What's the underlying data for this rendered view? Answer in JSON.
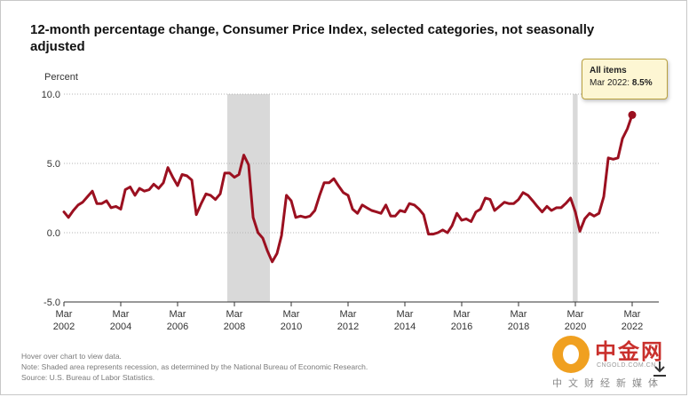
{
  "page": {
    "title": "12-month percentage change, Consumer Price Index, selected categories, not seasonally adjusted",
    "notes": [
      "Hover over chart to view data.",
      "Note: Shaded area represents recession, as determined by the National Bureau of Economic Research.",
      "Source: U.S. Bureau of Labor Statistics."
    ]
  },
  "tooltip": {
    "series": "All items",
    "date_label": "Mar 2022:",
    "value_label": "8.5%"
  },
  "watermark": {
    "name": "中金网",
    "domain": "CNGOLD.COM.CN",
    "slogan": "中文财经新媒体"
  },
  "chart_data": {
    "type": "line",
    "title": "12-month percentage change, Consumer Price Index, selected categories, not seasonally adjusted",
    "ylabel": "Percent",
    "xlabel": "",
    "ylim": [
      -5.0,
      10.0
    ],
    "yticks": [
      "10.0",
      "5.0",
      "0.0",
      "-5.0"
    ],
    "ytick_values": [
      10,
      5,
      0,
      -5
    ],
    "xtick_years": [
      2002,
      2004,
      2006,
      2008,
      2010,
      2012,
      2014,
      2016,
      2018,
      2020,
      2022
    ],
    "xtick_month_label": "Mar",
    "xlim_years": [
      2002.17,
      2022.17
    ],
    "grid": "horizontal dotted",
    "color": "#9b1020",
    "recessions": [
      {
        "label": "2007-2009 recession",
        "start": 2007.92,
        "end": 2009.42
      },
      {
        "label": "2020 recession",
        "start": 2020.08,
        "end": 2020.25
      }
    ],
    "series": [
      {
        "name": "All items",
        "points": [
          [
            2002.17,
            1.5
          ],
          [
            2002.33,
            1.1
          ],
          [
            2002.5,
            1.6
          ],
          [
            2002.67,
            2.0
          ],
          [
            2002.83,
            2.2
          ],
          [
            2003.0,
            2.6
          ],
          [
            2003.17,
            3.0
          ],
          [
            2003.33,
            2.1
          ],
          [
            2003.5,
            2.1
          ],
          [
            2003.67,
            2.3
          ],
          [
            2003.83,
            1.8
          ],
          [
            2004.0,
            1.9
          ],
          [
            2004.17,
            1.7
          ],
          [
            2004.33,
            3.1
          ],
          [
            2004.5,
            3.3
          ],
          [
            2004.67,
            2.7
          ],
          [
            2004.83,
            3.2
          ],
          [
            2005.0,
            3.0
          ],
          [
            2005.17,
            3.1
          ],
          [
            2005.33,
            3.5
          ],
          [
            2005.5,
            3.2
          ],
          [
            2005.67,
            3.6
          ],
          [
            2005.83,
            4.7
          ],
          [
            2006.0,
            4.0
          ],
          [
            2006.17,
            3.4
          ],
          [
            2006.33,
            4.2
          ],
          [
            2006.5,
            4.1
          ],
          [
            2006.67,
            3.8
          ],
          [
            2006.83,
            1.3
          ],
          [
            2007.0,
            2.1
          ],
          [
            2007.17,
            2.8
          ],
          [
            2007.33,
            2.7
          ],
          [
            2007.5,
            2.4
          ],
          [
            2007.67,
            2.8
          ],
          [
            2007.83,
            4.3
          ],
          [
            2008.0,
            4.3
          ],
          [
            2008.17,
            4.0
          ],
          [
            2008.33,
            4.2
          ],
          [
            2008.5,
            5.6
          ],
          [
            2008.67,
            4.9
          ],
          [
            2008.83,
            1.1
          ],
          [
            2009.0,
            0.0
          ],
          [
            2009.17,
            -0.4
          ],
          [
            2009.33,
            -1.3
          ],
          [
            2009.5,
            -2.1
          ],
          [
            2009.67,
            -1.5
          ],
          [
            2009.83,
            -0.2
          ],
          [
            2010.0,
            2.7
          ],
          [
            2010.17,
            2.3
          ],
          [
            2010.33,
            1.1
          ],
          [
            2010.5,
            1.2
          ],
          [
            2010.67,
            1.1
          ],
          [
            2010.83,
            1.2
          ],
          [
            2011.0,
            1.6
          ],
          [
            2011.17,
            2.7
          ],
          [
            2011.33,
            3.6
          ],
          [
            2011.5,
            3.6
          ],
          [
            2011.67,
            3.9
          ],
          [
            2011.83,
            3.4
          ],
          [
            2012.0,
            2.9
          ],
          [
            2012.17,
            2.7
          ],
          [
            2012.33,
            1.7
          ],
          [
            2012.5,
            1.4
          ],
          [
            2012.67,
            2.0
          ],
          [
            2012.83,
            1.8
          ],
          [
            2013.0,
            1.6
          ],
          [
            2013.17,
            1.5
          ],
          [
            2013.33,
            1.4
          ],
          [
            2013.5,
            2.0
          ],
          [
            2013.67,
            1.2
          ],
          [
            2013.83,
            1.2
          ],
          [
            2014.0,
            1.6
          ],
          [
            2014.17,
            1.5
          ],
          [
            2014.33,
            2.1
          ],
          [
            2014.5,
            2.0
          ],
          [
            2014.67,
            1.7
          ],
          [
            2014.83,
            1.3
          ],
          [
            2015.0,
            -0.1
          ],
          [
            2015.17,
            -0.1
          ],
          [
            2015.33,
            0.0
          ],
          [
            2015.5,
            0.2
          ],
          [
            2015.67,
            0.0
          ],
          [
            2015.83,
            0.5
          ],
          [
            2016.0,
            1.4
          ],
          [
            2016.17,
            0.9
          ],
          [
            2016.33,
            1.0
          ],
          [
            2016.5,
            0.8
          ],
          [
            2016.67,
            1.5
          ],
          [
            2016.83,
            1.7
          ],
          [
            2017.0,
            2.5
          ],
          [
            2017.17,
            2.4
          ],
          [
            2017.33,
            1.6
          ],
          [
            2017.5,
            1.9
          ],
          [
            2017.67,
            2.2
          ],
          [
            2017.83,
            2.1
          ],
          [
            2018.0,
            2.1
          ],
          [
            2018.17,
            2.4
          ],
          [
            2018.33,
            2.9
          ],
          [
            2018.5,
            2.7
          ],
          [
            2018.67,
            2.3
          ],
          [
            2018.83,
            1.9
          ],
          [
            2019.0,
            1.5
          ],
          [
            2019.17,
            1.9
          ],
          [
            2019.33,
            1.6
          ],
          [
            2019.5,
            1.8
          ],
          [
            2019.67,
            1.8
          ],
          [
            2019.83,
            2.1
          ],
          [
            2020.0,
            2.5
          ],
          [
            2020.17,
            1.5
          ],
          [
            2020.33,
            0.1
          ],
          [
            2020.5,
            1.0
          ],
          [
            2020.67,
            1.4
          ],
          [
            2020.83,
            1.2
          ],
          [
            2021.0,
            1.4
          ],
          [
            2021.17,
            2.6
          ],
          [
            2021.33,
            5.4
          ],
          [
            2021.5,
            5.3
          ],
          [
            2021.67,
            5.4
          ],
          [
            2021.83,
            6.8
          ],
          [
            2022.0,
            7.5
          ],
          [
            2022.17,
            8.5
          ]
        ]
      }
    ],
    "highlight": {
      "x": 2022.17,
      "y": 8.5
    }
  }
}
